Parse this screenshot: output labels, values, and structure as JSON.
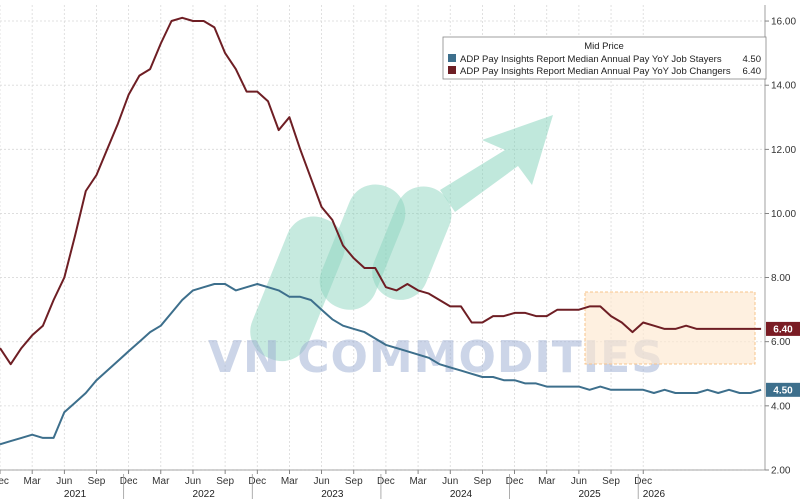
{
  "chart_data": {
    "type": "line",
    "legend_title": "Mid Price",
    "legend_position": "top-right",
    "watermark": "VN COMMODITIES",
    "ylim": [
      2.0,
      16.5
    ],
    "y_ticks": [
      "2.00",
      "4.00",
      "6.00",
      "8.00",
      "10.00",
      "12.00",
      "14.00",
      "16.00"
    ],
    "y_tick_values": [
      2,
      4,
      6,
      8,
      10,
      12,
      14,
      16
    ],
    "month_ticks": [
      "Dec",
      "Mar",
      "Jun",
      "Sep",
      "Dec",
      "Mar",
      "Jun",
      "Sep",
      "Dec",
      "Mar",
      "Jun",
      "Sep",
      "Dec",
      "Mar",
      "Jun",
      "Sep",
      "Dec",
      "Mar",
      "Jun",
      "Sep",
      "Dec"
    ],
    "month_tick_index": [
      0,
      3,
      6,
      9,
      12,
      15,
      18,
      21,
      24,
      27,
      30,
      33,
      36,
      39,
      42,
      45,
      48,
      51,
      54,
      57,
      60
    ],
    "year_labels": [
      "2021",
      "2022",
      "2023",
      "2024",
      "2025",
      "2026"
    ],
    "year_label_index": [
      7,
      19,
      31,
      43,
      55,
      61
    ],
    "grid": true,
    "series": [
      {
        "name": "ADP Pay Insights Report Median Annual Pay YoY Job Stayers",
        "last_label": "4.50",
        "color": "#3d6f8c",
        "badge_color": "#3d6f8c",
        "values": [
          2.8,
          2.9,
          3.0,
          3.1,
          3.0,
          3.0,
          3.8,
          4.1,
          4.4,
          4.8,
          5.1,
          5.4,
          5.7,
          6.0,
          6.3,
          6.5,
          6.9,
          7.3,
          7.6,
          7.7,
          7.8,
          7.8,
          7.6,
          7.7,
          7.8,
          7.7,
          7.6,
          7.4,
          7.4,
          7.3,
          7.0,
          6.7,
          6.5,
          6.4,
          6.3,
          6.1,
          5.9,
          5.8,
          5.7,
          5.6,
          5.5,
          5.3,
          5.2,
          5.1,
          5.0,
          4.9,
          4.9,
          4.8,
          4.8,
          4.7,
          4.7,
          4.6,
          4.6,
          4.6,
          4.6,
          4.5,
          4.6,
          4.5,
          4.5,
          4.5,
          4.5,
          4.4,
          4.5,
          4.4,
          4.4,
          4.4,
          4.5,
          4.4,
          4.5,
          4.4,
          4.4,
          4.5
        ]
      },
      {
        "name": "ADP Pay Insights Report Median Annual Pay YoY Job Changers",
        "last_label": "6.40",
        "color": "#6e1e24",
        "badge_color": "#7a1c24",
        "values": [
          5.8,
          5.3,
          5.8,
          6.2,
          6.5,
          7.3,
          8.0,
          9.3,
          10.7,
          11.2,
          12.0,
          12.8,
          13.7,
          14.3,
          14.5,
          15.3,
          16.0,
          16.1,
          16.0,
          16.0,
          15.8,
          15.0,
          14.5,
          13.8,
          13.8,
          13.5,
          12.6,
          13.0,
          12.0,
          11.1,
          10.2,
          9.8,
          9.0,
          8.6,
          8.3,
          8.3,
          7.7,
          7.6,
          7.8,
          7.6,
          7.5,
          7.3,
          7.1,
          7.1,
          6.6,
          6.6,
          6.8,
          6.8,
          6.9,
          6.9,
          6.8,
          6.8,
          7.0,
          7.0,
          7.0,
          7.1,
          7.1,
          6.8,
          6.6,
          6.3,
          6.6,
          6.5,
          6.4,
          6.4,
          6.5,
          6.4,
          6.4,
          6.4,
          6.4,
          6.4,
          6.4,
          6.4
        ]
      }
    ]
  }
}
